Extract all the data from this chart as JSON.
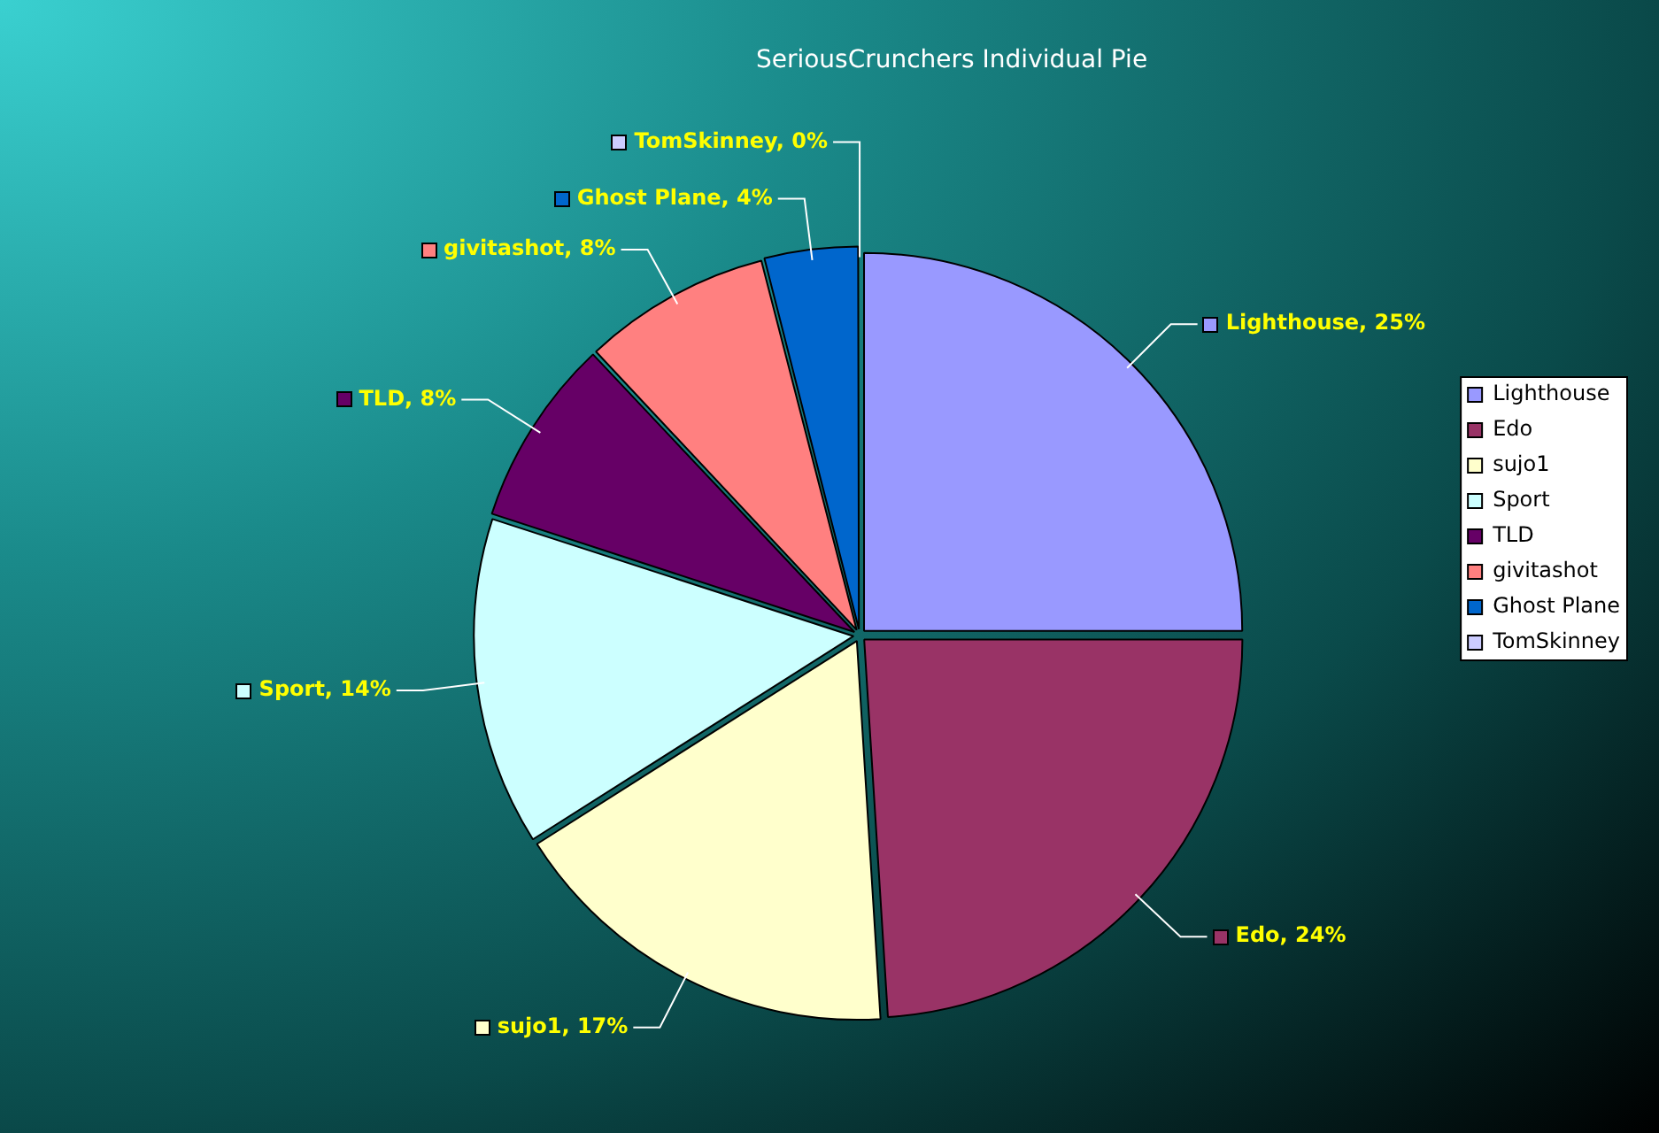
{
  "chart_data": {
    "type": "pie",
    "title": "SeriousCrunchers Individual Pie",
    "categories": [
      "Lighthouse",
      "Edo",
      "sujo1",
      "Sport",
      "TLD",
      "givitashot",
      "Ghost Plane",
      "TomSkinney"
    ],
    "values": [
      25,
      24,
      17,
      14,
      8,
      8,
      4,
      0
    ],
    "value_labels": [
      "Lighthouse, 25%",
      "Edo, 24%",
      "sujo1, 17%",
      "Sport, 14%",
      "TLD, 8%",
      "givitashot, 8%",
      "Ghost Plane, 4%",
      "TomSkinney, 0%"
    ],
    "colors": [
      "#9999ff",
      "#993366",
      "#ffffcc",
      "#ccffff",
      "#660066",
      "#ff8080",
      "#0066cc",
      "#ccccff"
    ],
    "legend": "right"
  }
}
